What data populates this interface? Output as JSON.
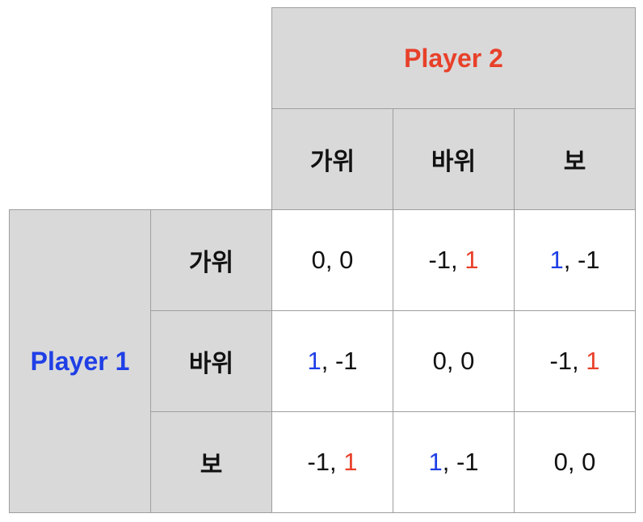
{
  "colors": {
    "player1": "#1f3fe6",
    "player2": "#e8402a",
    "header_bg": "#d9d9d9",
    "grid_line": "#9e9e9e"
  },
  "player2_label": "Player 2",
  "player1_label": "Player 1",
  "column_headers": [
    "가위",
    "바위",
    "보"
  ],
  "row_headers": [
    "가위",
    "바위",
    "보"
  ],
  "payoffs": [
    [
      {
        "p1": "0",
        "p2": "0",
        "winner": "none"
      },
      {
        "p1": "-1",
        "p2": "1",
        "winner": "p2"
      },
      {
        "p1": "1",
        "p2": "-1",
        "winner": "p1"
      }
    ],
    [
      {
        "p1": "1",
        "p2": "-1",
        "winner": "p1"
      },
      {
        "p1": "0",
        "p2": "0",
        "winner": "none"
      },
      {
        "p1": "-1",
        "p2": "1",
        "winner": "p2"
      }
    ],
    [
      {
        "p1": "-1",
        "p2": "1",
        "winner": "p2"
      },
      {
        "p1": "1",
        "p2": "-1",
        "winner": "p1"
      },
      {
        "p1": "0",
        "p2": "0",
        "winner": "none"
      }
    ]
  ],
  "separator": ", "
}
